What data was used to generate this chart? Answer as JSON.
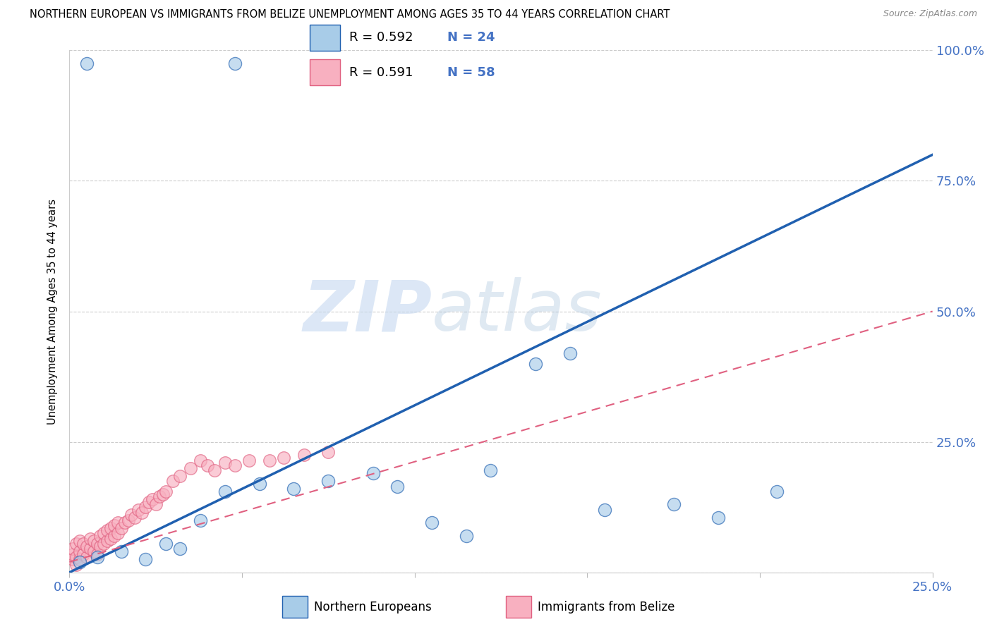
{
  "title": "NORTHERN EUROPEAN VS IMMIGRANTS FROM BELIZE UNEMPLOYMENT AMONG AGES 35 TO 44 YEARS CORRELATION CHART",
  "source": "Source: ZipAtlas.com",
  "ylabel": "Unemployment Among Ages 35 to 44 years",
  "xlim": [
    0.0,
    0.25
  ],
  "ylim": [
    0.0,
    1.0
  ],
  "blue_scatter_x": [
    0.005,
    0.048,
    0.003,
    0.008,
    0.015,
    0.022,
    0.028,
    0.032,
    0.038,
    0.045,
    0.055,
    0.065,
    0.075,
    0.088,
    0.095,
    0.105,
    0.115,
    0.122,
    0.135,
    0.145,
    0.155,
    0.175,
    0.188,
    0.205
  ],
  "blue_scatter_y": [
    0.975,
    0.975,
    0.02,
    0.03,
    0.04,
    0.025,
    0.055,
    0.045,
    0.1,
    0.155,
    0.17,
    0.16,
    0.175,
    0.19,
    0.165,
    0.095,
    0.07,
    0.195,
    0.4,
    0.42,
    0.12,
    0.13,
    0.105,
    0.155
  ],
  "pink_scatter_x": [
    0.001,
    0.001,
    0.001,
    0.002,
    0.002,
    0.002,
    0.003,
    0.003,
    0.003,
    0.004,
    0.004,
    0.005,
    0.005,
    0.006,
    0.006,
    0.007,
    0.007,
    0.008,
    0.008,
    0.009,
    0.009,
    0.01,
    0.01,
    0.011,
    0.011,
    0.012,
    0.012,
    0.013,
    0.013,
    0.014,
    0.014,
    0.015,
    0.016,
    0.017,
    0.018,
    0.019,
    0.02,
    0.021,
    0.022,
    0.023,
    0.024,
    0.025,
    0.026,
    0.027,
    0.028,
    0.03,
    0.032,
    0.035,
    0.038,
    0.04,
    0.042,
    0.045,
    0.048,
    0.052,
    0.058,
    0.062,
    0.068,
    0.075
  ],
  "pink_scatter_y": [
    0.025,
    0.035,
    0.045,
    0.015,
    0.03,
    0.055,
    0.025,
    0.04,
    0.06,
    0.035,
    0.055,
    0.03,
    0.05,
    0.045,
    0.065,
    0.04,
    0.06,
    0.035,
    0.055,
    0.05,
    0.07,
    0.055,
    0.075,
    0.06,
    0.08,
    0.065,
    0.085,
    0.07,
    0.09,
    0.075,
    0.095,
    0.085,
    0.095,
    0.1,
    0.11,
    0.105,
    0.12,
    0.115,
    0.125,
    0.135,
    0.14,
    0.13,
    0.145,
    0.15,
    0.155,
    0.175,
    0.185,
    0.2,
    0.215,
    0.205,
    0.195,
    0.21,
    0.205,
    0.215,
    0.215,
    0.22,
    0.225,
    0.23
  ],
  "blue_line_x": [
    0.0,
    0.25
  ],
  "blue_line_y": [
    0.0,
    0.8
  ],
  "pink_line_x": [
    0.0,
    0.25
  ],
  "pink_line_y": [
    0.02,
    0.5
  ],
  "blue_color": "#A8CCE8",
  "pink_color": "#F8B0C0",
  "blue_line_color": "#2060B0",
  "pink_line_color": "#E06080",
  "axis_color": "#4472C4",
  "watermark_zip": "ZIP",
  "watermark_atlas": "atlas",
  "legend_r_blue": "R = 0.592",
  "legend_n_blue": "N = 24",
  "legend_r_pink": "R = 0.591",
  "legend_n_pink": "N = 58",
  "legend_label_blue": "Northern Europeans",
  "legend_label_pink": "Immigrants from Belize"
}
